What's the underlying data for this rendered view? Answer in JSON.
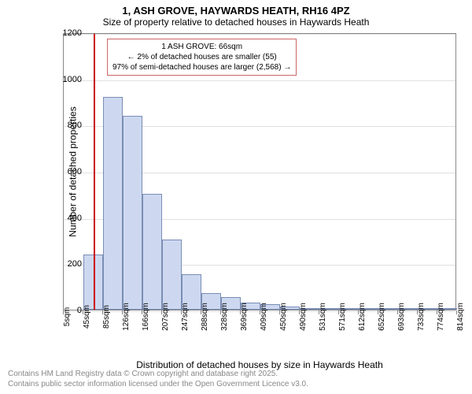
{
  "title": "1, ASH GROVE, HAYWARDS HEATH, RH16 4PZ",
  "subtitle": "Size of property relative to detached houses in Haywards Heath",
  "ylabel": "Number of detached properties",
  "xlabel": "Distribution of detached houses by size in Haywards Heath",
  "chart": {
    "type": "histogram",
    "ylim": [
      0,
      1200
    ],
    "ytick_step": 200,
    "yticks": [
      0,
      200,
      400,
      600,
      800,
      1000,
      1200
    ],
    "xtick_labels": [
      "5sqm",
      "45sqm",
      "85sqm",
      "126sqm",
      "166sqm",
      "207sqm",
      "247sqm",
      "288sqm",
      "328sqm",
      "369sqm",
      "409sqm",
      "450sqm",
      "490sqm",
      "531sqm",
      "571sqm",
      "612sqm",
      "652sqm",
      "693sqm",
      "733sqm",
      "774sqm",
      "814sqm"
    ],
    "bar_values": [
      0,
      240,
      920,
      840,
      500,
      305,
      155,
      70,
      55,
      30,
      25,
      15,
      8,
      5,
      8,
      5,
      3,
      3,
      2,
      2
    ],
    "bar_color": "#cdd8f0",
    "bar_border_color": "#7a8db5",
    "background_color": "#ffffff",
    "grid_color": "#e0e0e0",
    "reference_line": {
      "x_bin": 1.5,
      "color": "#cc0000"
    },
    "annotation": {
      "line1": "1 ASH GROVE: 66sqm",
      "line2": "← 2% of detached houses are smaller (55)",
      "line3": "97% of semi-detached houses are larger (2,568) →",
      "border_color": "#cc6666"
    }
  },
  "footer": {
    "line1": "Contains HM Land Registry data © Crown copyright and database right 2025.",
    "line2": "Contains public sector information licensed under the Open Government Licence v3.0."
  }
}
